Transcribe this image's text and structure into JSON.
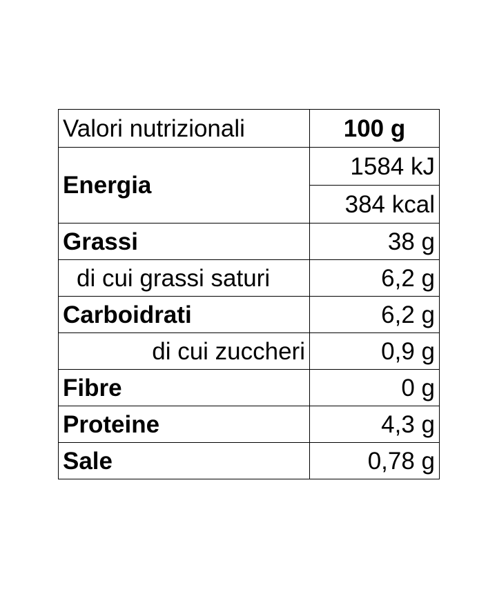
{
  "table": {
    "header": {
      "label": "Valori nutrizionali",
      "value": "100 g"
    },
    "energy": {
      "label": "Energia",
      "kj": "1584 kJ",
      "kcal": "384 kcal"
    },
    "rows": [
      {
        "label": "Grassi",
        "value": "38 g"
      },
      {
        "label": "di cui grassi saturi",
        "value": "6,2 g"
      },
      {
        "label": "Carboidrati",
        "value": "6,2 g"
      },
      {
        "label": "di cui zuccheri",
        "value": "0,9 g"
      },
      {
        "label": "Fibre",
        "value": "0 g"
      },
      {
        "label": "Proteine",
        "value": "4,3 g"
      },
      {
        "label": "Sale",
        "value": "0,78 g"
      }
    ]
  }
}
